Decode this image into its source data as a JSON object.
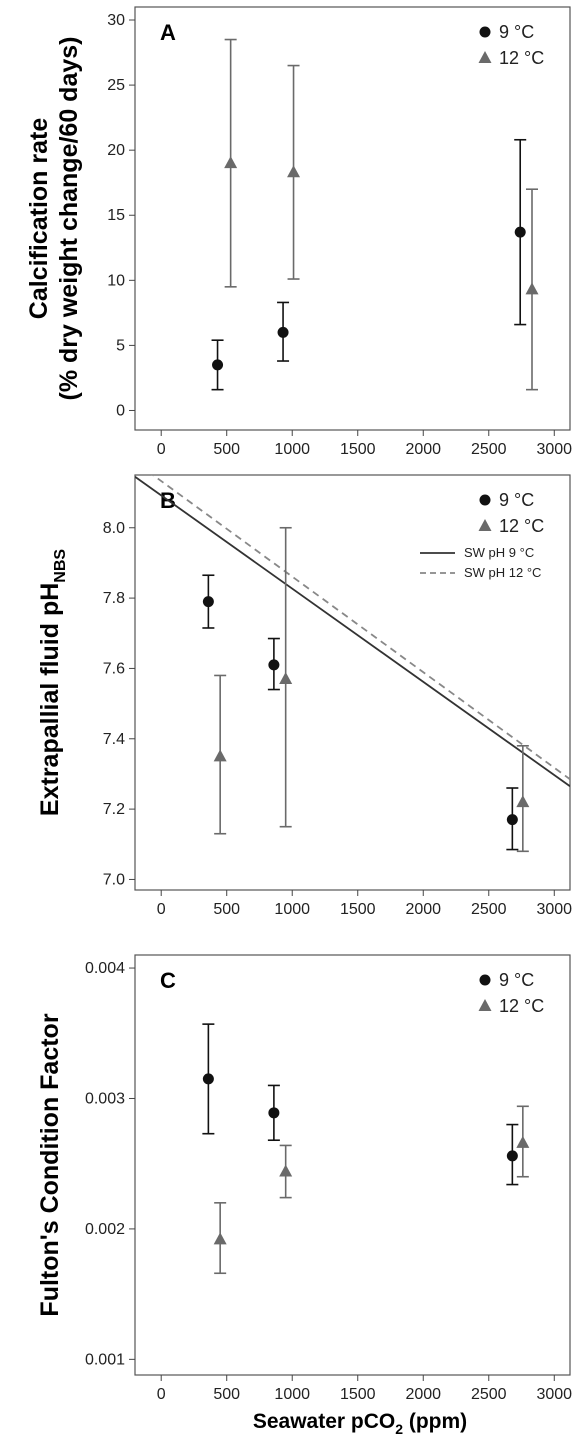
{
  "figure": {
    "x_axis_title": "Seawater pCO",
    "x_axis_sub": "2",
    "x_axis_unit": " (ppm)"
  },
  "chart_data": [
    {
      "type": "scatter",
      "panel_label": "A",
      "ylabel_line1": "Calcification rate",
      "ylabel_line2": "(% dry weight change/60 days)",
      "xlim": [
        -200,
        3120
      ],
      "ylim": [
        -1.5,
        31
      ],
      "x_ticks": [
        0,
        500,
        1000,
        1500,
        2000,
        2500,
        3000
      ],
      "y_ticks": [
        0,
        5,
        10,
        15,
        20,
        25,
        30
      ],
      "y_tick_labels": [
        "0",
        "5",
        "10",
        "15",
        "20",
        "25",
        "30"
      ],
      "series": [
        {
          "name": "9 °C",
          "marker": "circle",
          "color": "#111111",
          "points": [
            {
              "x": 430,
              "y": 3.5,
              "lo": 1.6,
              "hi": 5.4
            },
            {
              "x": 930,
              "y": 6.0,
              "lo": 3.8,
              "hi": 8.3
            },
            {
              "x": 2740,
              "y": 13.7,
              "lo": 6.6,
              "hi": 20.8
            }
          ]
        },
        {
          "name": "12 °C",
          "marker": "triangle",
          "color": "#6a6a6a",
          "points": [
            {
              "x": 530,
              "y": 19.0,
              "lo": 9.5,
              "hi": 28.5
            },
            {
              "x": 1010,
              "y": 18.3,
              "lo": 10.1,
              "hi": 26.5
            },
            {
              "x": 2830,
              "y": 9.3,
              "lo": 1.6,
              "hi": 17.0
            }
          ]
        }
      ]
    },
    {
      "type": "scatter",
      "panel_label": "B",
      "ylabel_main": "Extrapallial fluid pH",
      "ylabel_sub": "NBS",
      "xlim": [
        -200,
        3120
      ],
      "ylim": [
        6.97,
        8.15
      ],
      "x_ticks": [
        0,
        500,
        1000,
        1500,
        2000,
        2500,
        3000
      ],
      "y_ticks": [
        7.0,
        7.2,
        7.4,
        7.6,
        7.8,
        8.0
      ],
      "y_tick_labels": [
        "7.0",
        "7.2",
        "7.4",
        "7.6",
        "7.8",
        "8.0"
      ],
      "series": [
        {
          "name": "9 °C",
          "marker": "circle",
          "color": "#111111",
          "points": [
            {
              "x": 360,
              "y": 7.79,
              "lo": 7.715,
              "hi": 7.865
            },
            {
              "x": 860,
              "y": 7.61,
              "lo": 7.54,
              "hi": 7.685
            },
            {
              "x": 2680,
              "y": 7.17,
              "lo": 7.085,
              "hi": 7.26
            }
          ]
        },
        {
          "name": "12 °C",
          "marker": "triangle",
          "color": "#6a6a6a",
          "points": [
            {
              "x": 450,
              "y": 7.35,
              "lo": 7.13,
              "hi": 7.58
            },
            {
              "x": 950,
              "y": 7.57,
              "lo": 7.15,
              "hi": 8.0
            },
            {
              "x": 2760,
              "y": 7.22,
              "lo": 7.08,
              "hi": 7.38
            }
          ]
        }
      ],
      "lines": [
        {
          "name": "SW pH 9 °C",
          "style": "solid",
          "color": "#333333",
          "x": [
            -200,
            3120
          ],
          "y": [
            8.145,
            7.265
          ]
        },
        {
          "name": "SW pH 12 °C",
          "style": "dashed",
          "color": "#888888",
          "x": [
            -100,
            3120
          ],
          "y": [
            8.16,
            7.285
          ]
        }
      ]
    },
    {
      "type": "scatter",
      "panel_label": "C",
      "ylabel_main": "Fulton's Condition Factor",
      "xlim": [
        -200,
        3120
      ],
      "ylim": [
        0.00088,
        0.0041
      ],
      "x_ticks": [
        0,
        500,
        1000,
        1500,
        2000,
        2500,
        3000
      ],
      "y_ticks": [
        0.001,
        0.002,
        0.003,
        0.004
      ],
      "y_tick_labels": [
        "0.001",
        "0.002",
        "0.003",
        "0.004"
      ],
      "series": [
        {
          "name": "9 °C",
          "marker": "circle",
          "color": "#111111",
          "points": [
            {
              "x": 360,
              "y": 0.00315,
              "lo": 0.00273,
              "hi": 0.00357
            },
            {
              "x": 860,
              "y": 0.00289,
              "lo": 0.00268,
              "hi": 0.0031
            },
            {
              "x": 2680,
              "y": 0.00256,
              "lo": 0.00234,
              "hi": 0.0028
            }
          ]
        },
        {
          "name": "12 °C",
          "marker": "triangle",
          "color": "#6a6a6a",
          "points": [
            {
              "x": 450,
              "y": 0.00192,
              "lo": 0.00166,
              "hi": 0.0022
            },
            {
              "x": 950,
              "y": 0.00244,
              "lo": 0.00224,
              "hi": 0.00264
            },
            {
              "x": 2760,
              "y": 0.00266,
              "lo": 0.0024,
              "hi": 0.00294
            }
          ]
        }
      ]
    }
  ]
}
